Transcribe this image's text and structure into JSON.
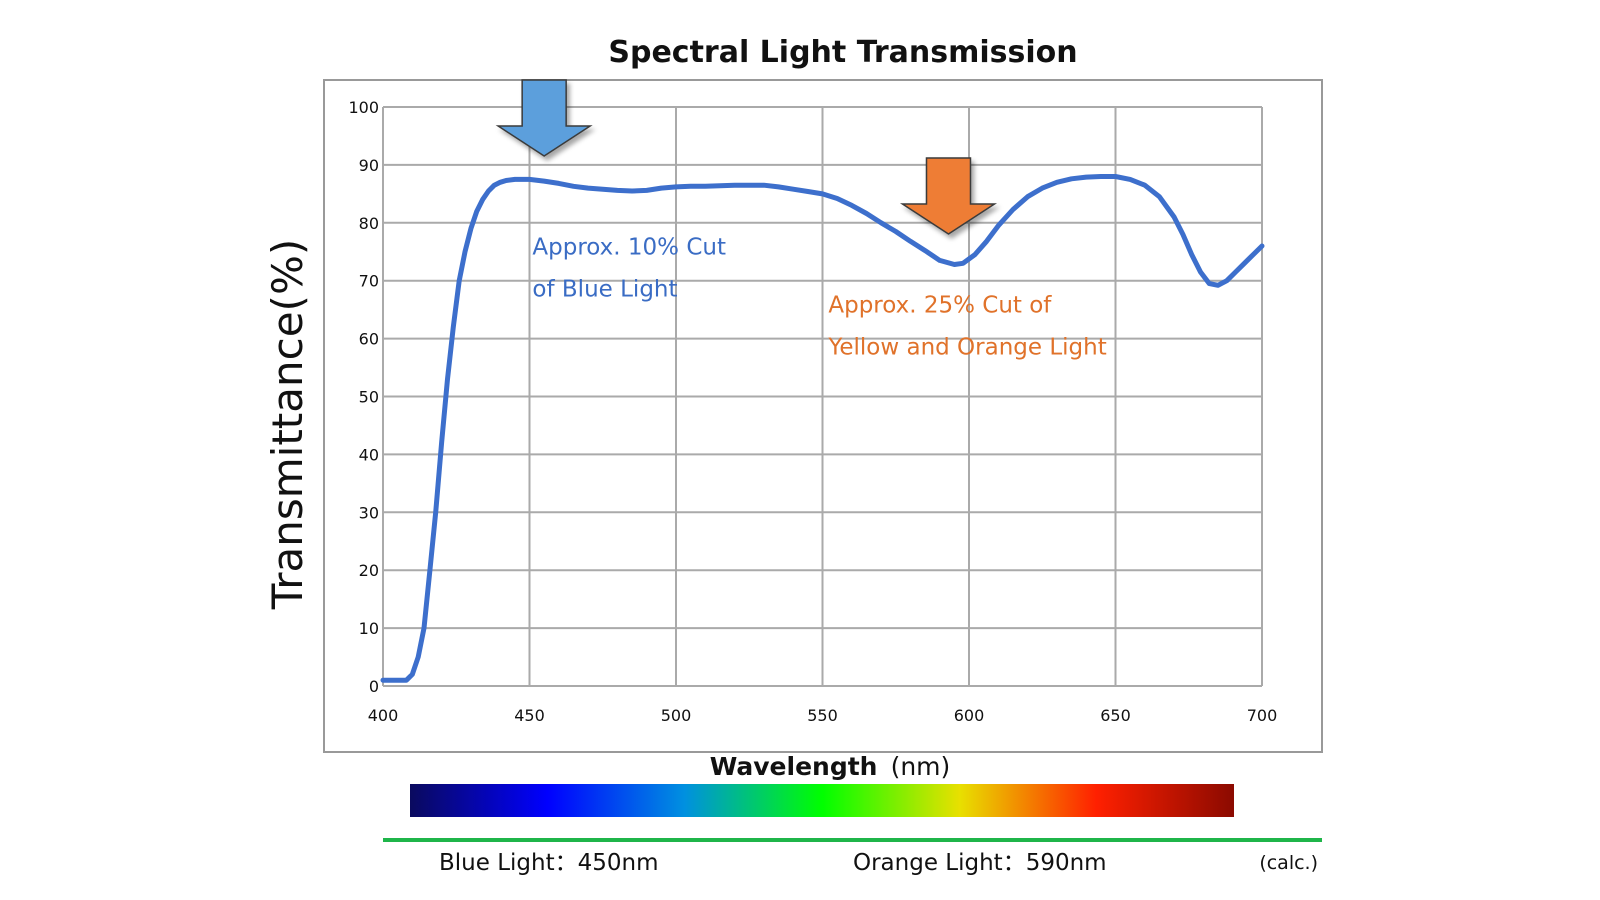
{
  "colors": {
    "curve": "#3d6fcc",
    "blue_annotation": "#3a6cc4",
    "orange_annotation": "#e0722a",
    "blue_arrow": "#5b9fdc",
    "orange_arrow": "#ee7d34",
    "grid": "#aaaaaa",
    "frame": "#999999",
    "footer_line": "#1fb54a"
  },
  "chart_data": {
    "type": "line",
    "title": "Spectral Light Transmission",
    "xlabel": "Wavelength",
    "xlabel_unit": "(nm)",
    "ylabel": "Transmittance(%)",
    "xlim": [
      400,
      700
    ],
    "ylim": [
      0,
      100
    ],
    "x_ticks": [
      400,
      450,
      500,
      550,
      600,
      650,
      700
    ],
    "y_ticks": [
      0,
      10,
      20,
      30,
      40,
      50,
      60,
      70,
      80,
      90,
      100
    ],
    "grid": true,
    "series": [
      {
        "x": [
          400,
          405,
          408,
          410,
          412,
          414,
          416,
          418,
          420,
          422,
          424,
          426,
          428,
          430,
          432,
          434,
          436,
          438,
          440,
          442,
          445,
          450,
          455,
          460,
          465,
          470,
          475,
          480,
          485,
          490,
          495,
          500,
          505,
          510,
          515,
          520,
          525,
          530,
          535,
          540,
          545,
          550,
          555,
          560,
          565,
          570,
          575,
          580,
          585,
          590,
          595,
          598,
          602,
          606,
          610,
          615,
          620,
          625,
          630,
          635,
          640,
          645,
          650,
          655,
          660,
          665,
          670,
          673,
          676,
          679,
          682,
          685,
          688,
          691,
          694,
          697,
          700
        ],
        "y": [
          1,
          1,
          1,
          2,
          5,
          10,
          20,
          30,
          42,
          53,
          62,
          70,
          75,
          79,
          82,
          84,
          85.5,
          86.5,
          87,
          87.3,
          87.5,
          87.5,
          87.2,
          86.8,
          86.3,
          86,
          85.8,
          85.6,
          85.5,
          85.6,
          86,
          86.2,
          86.3,
          86.3,
          86.4,
          86.5,
          86.5,
          86.5,
          86.2,
          85.8,
          85.4,
          85,
          84.2,
          83,
          81.6,
          80,
          78.5,
          76.8,
          75.2,
          73.5,
          72.8,
          73,
          74.5,
          76.8,
          79.5,
          82.3,
          84.5,
          86,
          87,
          87.6,
          87.9,
          88,
          88,
          87.5,
          86.5,
          84.5,
          81,
          78,
          74.5,
          71.5,
          69.5,
          69.2,
          70,
          71.5,
          73,
          74.5,
          76
        ]
      }
    ],
    "annotations": [
      {
        "lines": [
          "Approx. 10% Cut",
          "of Blue Light"
        ],
        "x": 451,
        "y": 74.5,
        "color_key": "blue_annotation"
      },
      {
        "lines": [
          "Approx. 25% Cut of",
          "Yellow and Orange Light"
        ],
        "x": 552,
        "y": 64.5,
        "color_key": "orange_annotation"
      }
    ],
    "markers": [
      {
        "name": "blue-arrow",
        "x": 455,
        "color_key": "blue_arrow"
      },
      {
        "name": "orange-arrow",
        "x": 593,
        "color_key": "orange_arrow"
      }
    ]
  },
  "spectrum_bar": {
    "stops": [
      "#0a0a5e",
      "#0000ff",
      "#0090e0",
      "#00ff00",
      "#e8e000",
      "#ff2000",
      "#8b0a00"
    ]
  },
  "footer": {
    "blue_light": "Blue Light：450nm",
    "orange_light": "Orange Light：590nm",
    "note": "(calc.)"
  }
}
